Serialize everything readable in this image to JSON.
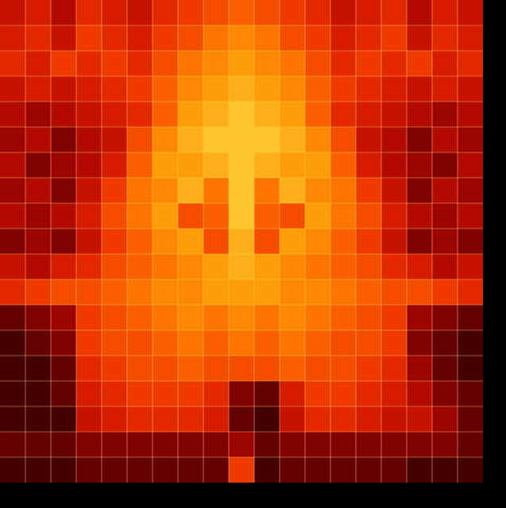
{
  "chart_data": {
    "type": "heatmap",
    "tick_labels": false,
    "color_range": [
      0,
      100
    ],
    "cells": [
      [
        35,
        40,
        30,
        45,
        40,
        35,
        45,
        50,
        55,
        60,
        55,
        50,
        45,
        35,
        40,
        45,
        30,
        40,
        35
      ],
      [
        40,
        45,
        35,
        50,
        45,
        40,
        50,
        55,
        65,
        70,
        65,
        55,
        50,
        40,
        45,
        50,
        35,
        45,
        40
      ],
      [
        45,
        40,
        50,
        45,
        50,
        45,
        55,
        65,
        70,
        75,
        70,
        65,
        55,
        45,
        50,
        45,
        50,
        40,
        45
      ],
      [
        35,
        40,
        35,
        40,
        45,
        50,
        60,
        70,
        75,
        80,
        75,
        70,
        60,
        50,
        45,
        40,
        35,
        40,
        35
      ],
      [
        30,
        25,
        30,
        35,
        40,
        45,
        60,
        75,
        80,
        85,
        80,
        75,
        60,
        45,
        40,
        35,
        30,
        25,
        30
      ],
      [
        25,
        30,
        20,
        30,
        35,
        55,
        70,
        80,
        85,
        85,
        85,
        80,
        70,
        55,
        35,
        30,
        20,
        30,
        25
      ],
      [
        30,
        20,
        25,
        30,
        40,
        60,
        75,
        75,
        80,
        85,
        80,
        75,
        75,
        60,
        40,
        30,
        25,
        20,
        30
      ],
      [
        25,
        30,
        20,
        35,
        50,
        65,
        70,
        80,
        65,
        85,
        65,
        80,
        70,
        65,
        50,
        35,
        20,
        30,
        25
      ],
      [
        30,
        25,
        30,
        40,
        55,
        65,
        75,
        55,
        60,
        85,
        60,
        55,
        75,
        65,
        55,
        40,
        30,
        25,
        30
      ],
      [
        20,
        25,
        20,
        35,
        50,
        60,
        70,
        75,
        55,
        80,
        55,
        75,
        70,
        60,
        50,
        35,
        20,
        25,
        20
      ],
      [
        35,
        30,
        40,
        45,
        55,
        60,
        65,
        70,
        75,
        80,
        75,
        70,
        65,
        60,
        55,
        45,
        40,
        30,
        35
      ],
      [
        45,
        50,
        55,
        55,
        60,
        65,
        70,
        70,
        75,
        75,
        75,
        70,
        70,
        65,
        60,
        55,
        55,
        50,
        45
      ],
      [
        15,
        20,
        25,
        50,
        55,
        60,
        65,
        70,
        65,
        70,
        65,
        70,
        65,
        60,
        55,
        50,
        25,
        20,
        15
      ],
      [
        10,
        15,
        20,
        50,
        55,
        55,
        60,
        65,
        60,
        65,
        60,
        65,
        60,
        55,
        55,
        50,
        20,
        15,
        10
      ],
      [
        10,
        10,
        15,
        45,
        50,
        55,
        55,
        60,
        55,
        55,
        55,
        60,
        55,
        55,
        50,
        45,
        25,
        15,
        10
      ],
      [
        10,
        10,
        15,
        40,
        45,
        50,
        50,
        50,
        45,
        20,
        15,
        40,
        50,
        50,
        45,
        40,
        30,
        20,
        15
      ],
      [
        10,
        10,
        10,
        35,
        40,
        45,
        45,
        45,
        40,
        15,
        10,
        35,
        45,
        45,
        40,
        35,
        35,
        25,
        15
      ],
      [
        15,
        15,
        15,
        20,
        20,
        20,
        20,
        20,
        20,
        25,
        15,
        20,
        20,
        20,
        20,
        20,
        20,
        20,
        15
      ],
      [
        10,
        10,
        10,
        15,
        15,
        15,
        15,
        15,
        15,
        50,
        10,
        15,
        15,
        15,
        15,
        15,
        10,
        10,
        10
      ]
    ]
  }
}
